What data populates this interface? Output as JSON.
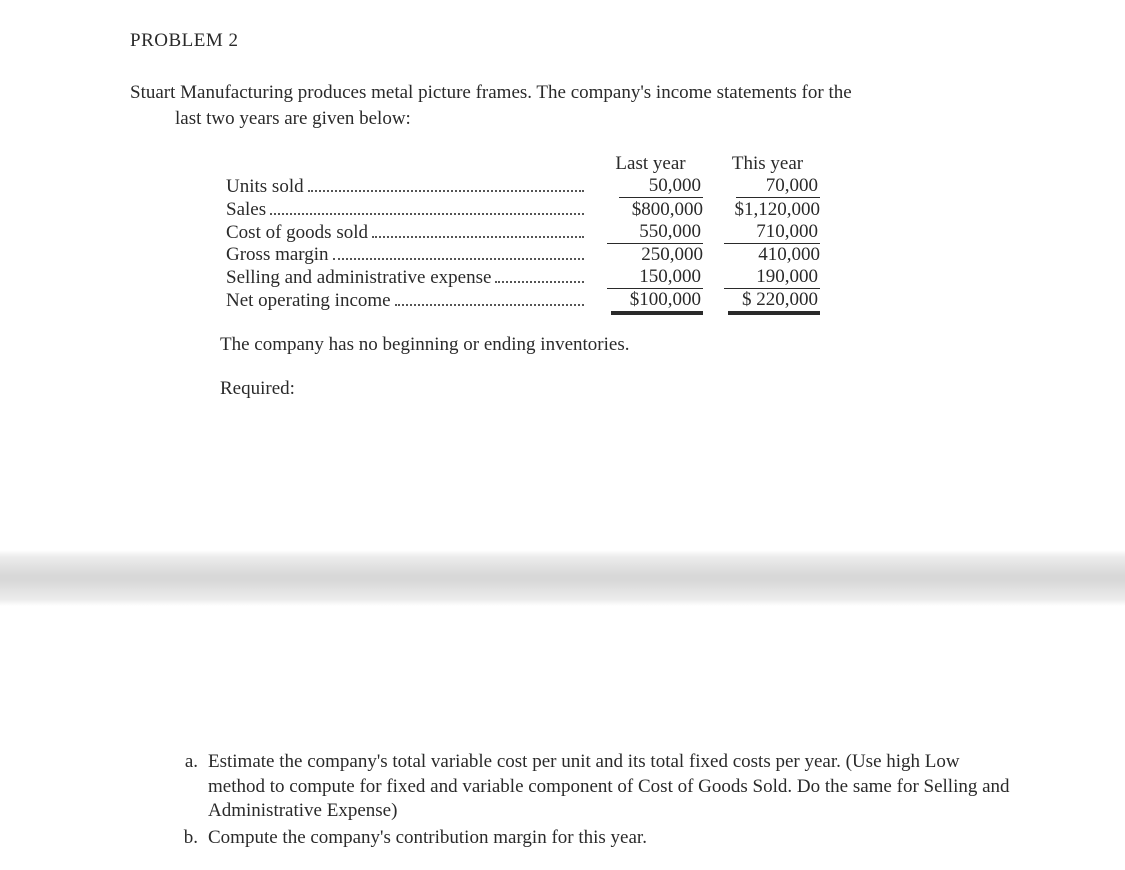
{
  "title": "PROBLEM 2",
  "intro_line1": "Stuart Manufacturing produces metal picture frames. The company's income statements for the",
  "intro_line2": "last two years are given below:",
  "table": {
    "header_col1": "Last year",
    "header_col2": "This year",
    "rows": [
      {
        "label": "Units sold",
        "c1": "50,000",
        "c2": "70,000",
        "style": "ul"
      },
      {
        "label": "Sales",
        "c1": "$800,000",
        "c2": "$1,120,000",
        "style": "plain"
      },
      {
        "label": "Cost of goods sold",
        "c1": "550,000",
        "c2": "710,000",
        "style": "ul-wide"
      },
      {
        "label": "Gross margin",
        "c1": "250,000",
        "c2": "410,000",
        "style": "plain"
      },
      {
        "label": "Selling and administrative expense",
        "c1": "150,000",
        "c2": "190,000",
        "style": "ul-wide"
      },
      {
        "label": "Net operating income",
        "c1": "$100,000",
        "c2": "$ 220,000",
        "style": "dbl"
      }
    ]
  },
  "note": "The company has no beginning or ending inventories.",
  "required_label": "Required:",
  "questions": {
    "a_marker": "a.",
    "a_text": "Estimate the company's total variable cost per unit and its total fixed costs per year. (Use high Low method to compute for fixed and variable component of Cost of Goods Sold. Do the same for Selling and Administrative Expense)",
    "b_marker": "b.",
    "b_text": "Compute the company's contribution margin for this year."
  },
  "colors": {
    "text": "#2a2a2a",
    "background": "#ffffff",
    "band_mid": "#d8d8d8"
  }
}
